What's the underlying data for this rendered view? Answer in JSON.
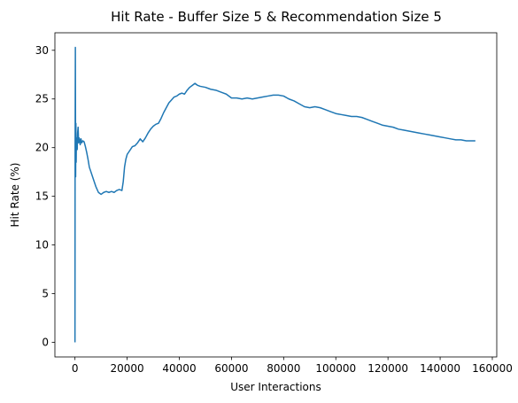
{
  "chart_data": {
    "type": "line",
    "title": "Hit Rate - Buffer Size 5 & Recommendation Size 5",
    "xlabel": "User Interactions",
    "ylabel": "Hit Rate (%)",
    "xlim": [
      -7700,
      161700
    ],
    "ylim": [
      -1.5,
      31.8
    ],
    "x_ticks": [
      0,
      20000,
      40000,
      60000,
      80000,
      100000,
      120000,
      140000,
      160000
    ],
    "x_tick_labels": [
      "0",
      "20000",
      "40000",
      "60000",
      "80000",
      "100000",
      "120000",
      "140000",
      "160000"
    ],
    "y_ticks": [
      0,
      5,
      10,
      15,
      20,
      25,
      30
    ],
    "y_tick_labels": [
      "0",
      "5",
      "10",
      "15",
      "20",
      "25",
      "30"
    ],
    "grid": false,
    "series": [
      {
        "color": "#1f77b4",
        "x": [
          0,
          50,
          150,
          250,
          350,
          450,
          550,
          700,
          850,
          1000,
          1200,
          1400,
          1600,
          1800,
          2000,
          2300,
          2600,
          3000,
          3500,
          4000,
          4500,
          5000,
          5500,
          6000,
          7000,
          8000,
          9000,
          10000,
          11000,
          12000,
          13000,
          14000,
          15000,
          16000,
          17000,
          18000,
          18500,
          19000,
          19500,
          20000,
          21000,
          22000,
          23000,
          24000,
          25000,
          26000,
          27000,
          28000,
          29000,
          30000,
          31000,
          32000,
          33000,
          34000,
          35000,
          36000,
          37000,
          38000,
          39000,
          40000,
          41000,
          42000,
          43000,
          44000,
          45000,
          46000,
          47000,
          48000,
          50000,
          52000,
          54000,
          56000,
          58000,
          60000,
          62000,
          64000,
          66000,
          68000,
          70000,
          72000,
          74000,
          76000,
          78000,
          80000,
          82000,
          84000,
          86000,
          88000,
          90000,
          92000,
          94000,
          96000,
          98000,
          100000,
          102000,
          104000,
          106000,
          108000,
          110000,
          112000,
          114000,
          116000,
          118000,
          120000,
          122000,
          124000,
          126000,
          128000,
          130000,
          132000,
          134000,
          136000,
          138000,
          140000,
          142000,
          144000,
          146000,
          148000,
          150000,
          152000,
          153500
        ],
        "y": [
          0,
          20,
          30.3,
          17.0,
          22.5,
          18.5,
          21.0,
          20.2,
          19.8,
          21.5,
          22.1,
          20.5,
          21.0,
          20.8,
          20.3,
          20.9,
          20.5,
          20.7,
          20.6,
          20.1,
          19.5,
          18.8,
          18.0,
          17.6,
          16.8,
          16.0,
          15.4,
          15.2,
          15.4,
          15.5,
          15.4,
          15.5,
          15.4,
          15.6,
          15.7,
          15.6,
          16.5,
          18.0,
          18.8,
          19.3,
          19.7,
          20.1,
          20.2,
          20.5,
          20.9,
          20.6,
          21.0,
          21.5,
          21.9,
          22.2,
          22.4,
          22.5,
          23.0,
          23.6,
          24.1,
          24.6,
          24.9,
          25.2,
          25.3,
          25.5,
          25.6,
          25.5,
          25.9,
          26.2,
          26.4,
          26.6,
          26.4,
          26.3,
          26.2,
          26.0,
          25.9,
          25.7,
          25.5,
          25.1,
          25.1,
          25.0,
          25.1,
          25.0,
          25.1,
          25.2,
          25.3,
          25.4,
          25.4,
          25.3,
          25.0,
          24.8,
          24.5,
          24.2,
          24.1,
          24.2,
          24.1,
          23.9,
          23.7,
          23.5,
          23.4,
          23.3,
          23.2,
          23.2,
          23.1,
          22.9,
          22.7,
          22.5,
          22.3,
          22.2,
          22.1,
          21.9,
          21.8,
          21.7,
          21.6,
          21.5,
          21.4,
          21.3,
          21.2,
          21.1,
          21.0,
          20.9,
          20.8,
          20.8,
          20.7,
          20.7,
          20.7
        ]
      }
    ]
  }
}
